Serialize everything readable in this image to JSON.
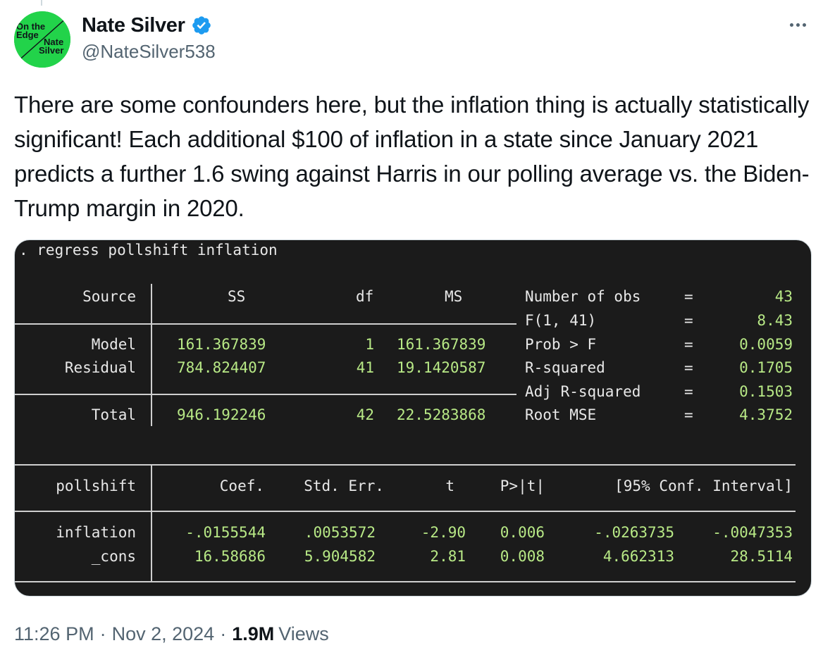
{
  "author": {
    "display_name": "Nate Silver",
    "handle": "@NateSilver538",
    "avatar_text": [
      "On the",
      "Edge",
      "Nate",
      "Silver"
    ]
  },
  "tweet": {
    "text": "There are some confounders here, but the inflation thing is actually statistically significant! Each additional $100 of inflation in a state since January 2021 predicts a further 1.6 swing against Harris in our polling average vs. the Biden-Trump margin in 2020.",
    "time": "11:26 PM",
    "date": "Nov 2, 2024",
    "views_count": "1.9M",
    "views_label": "Views"
  },
  "output": {
    "command": ". regress pollshift inflation",
    "anova_headers": [
      "Source",
      "SS",
      "df",
      "MS"
    ],
    "anova_rows": [
      {
        "source": "Model",
        "ss": "161.367839",
        "df": "1",
        "ms": "161.367839"
      },
      {
        "source": "Residual",
        "ss": "784.824407",
        "df": "41",
        "ms": "19.1420587"
      },
      {
        "source": "Total",
        "ss": "946.192246",
        "df": "42",
        "ms": "22.5283868"
      }
    ],
    "stats": [
      {
        "label": "Number of obs",
        "eq": "=",
        "value": "43"
      },
      {
        "label": "F(1, 41)",
        "eq": "=",
        "value": "8.43"
      },
      {
        "label": "Prob > F",
        "eq": "=",
        "value": "0.0059"
      },
      {
        "label": "R-squared",
        "eq": "=",
        "value": "0.1705"
      },
      {
        "label": "Adj R-squared",
        "eq": "=",
        "value": "0.1503"
      },
      {
        "label": "Root MSE",
        "eq": "=",
        "value": "4.3752"
      }
    ],
    "coef_headers": [
      "pollshift",
      "Coef.",
      "Std. Err.",
      "t",
      "P>|t|",
      "[95% Conf. Interval]"
    ],
    "coef_rows": [
      {
        "name": "inflation",
        "coef": "-.0155544",
        "se": ".0053572",
        "t": "-2.90",
        "p": "0.006",
        "lo": "-.0263735",
        "hi": "-.0047353"
      },
      {
        "name": "_cons",
        "coef": "16.58686",
        "se": "5.904582",
        "t": "2.81",
        "p": "0.008",
        "lo": "4.662313",
        "hi": "28.5114"
      }
    ]
  }
}
